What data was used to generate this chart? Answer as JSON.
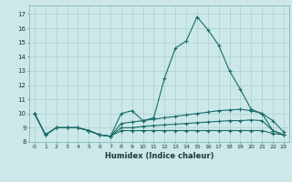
{
  "title": "",
  "xlabel": "Humidex (Indice chaleur)",
  "ylabel": "",
  "xlim": [
    -0.5,
    23.5
  ],
  "ylim": [
    8.0,
    17.6
  ],
  "yticks": [
    8,
    9,
    10,
    11,
    12,
    13,
    14,
    15,
    16,
    17
  ],
  "xticks": [
    0,
    1,
    2,
    3,
    4,
    5,
    6,
    7,
    8,
    9,
    10,
    11,
    12,
    13,
    14,
    15,
    16,
    17,
    18,
    19,
    20,
    21,
    22,
    23
  ],
  "bg_color": "#cce8e8",
  "grid_color": "#aad0d0",
  "line_color": "#1a6b6b",
  "lines": [
    [
      10.0,
      8.5,
      9.0,
      9.0,
      9.0,
      8.8,
      8.5,
      8.4,
      10.0,
      10.2,
      9.5,
      9.7,
      12.5,
      14.6,
      15.1,
      16.8,
      15.9,
      14.8,
      13.0,
      11.7,
      10.3,
      10.0,
      9.5,
      8.7
    ],
    [
      10.0,
      8.5,
      9.0,
      9.0,
      9.0,
      8.8,
      8.5,
      8.4,
      9.3,
      9.4,
      9.5,
      9.6,
      9.7,
      9.8,
      9.9,
      10.0,
      10.1,
      10.2,
      10.25,
      10.3,
      10.2,
      10.0,
      8.8,
      8.5
    ],
    [
      10.0,
      8.5,
      9.0,
      9.0,
      9.0,
      8.8,
      8.5,
      8.4,
      9.0,
      9.0,
      9.1,
      9.15,
      9.2,
      9.25,
      9.3,
      9.35,
      9.4,
      9.45,
      9.5,
      9.5,
      9.55,
      9.5,
      8.8,
      8.5
    ],
    [
      10.0,
      8.5,
      9.0,
      9.0,
      9.0,
      8.8,
      8.5,
      8.4,
      8.8,
      8.8,
      8.8,
      8.8,
      8.8,
      8.8,
      8.8,
      8.8,
      8.8,
      8.8,
      8.8,
      8.8,
      8.8,
      8.8,
      8.6,
      8.5
    ]
  ]
}
